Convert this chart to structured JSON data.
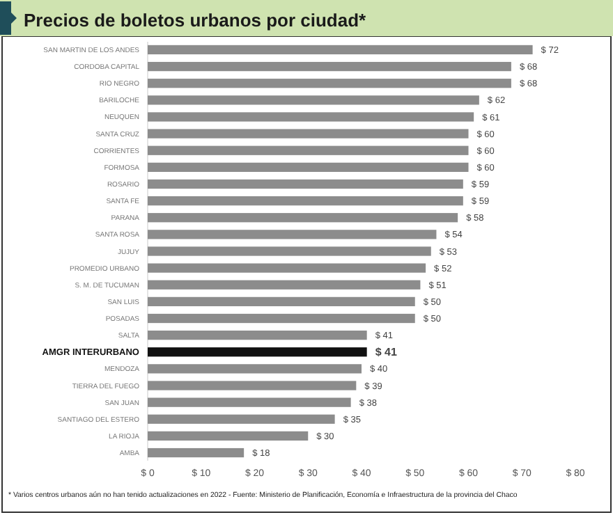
{
  "chart_data": {
    "type": "bar",
    "orientation": "horizontal",
    "title": "Precios de boletos urbanos por ciudad*",
    "categories": [
      "SAN MARTIN DE LOS ANDES",
      "CORDOBA CAPITAL",
      "RIO NEGRO",
      "BARILOCHE",
      "NEUQUEN",
      "SANTA CRUZ",
      "CORRIENTES",
      "FORMOSA",
      "ROSARIO",
      "SANTA FE",
      "PARANA",
      "SANTA ROSA",
      "JUJUY",
      "PROMEDIO URBANO",
      "S. M. DE TUCUMAN",
      "SAN LUIS",
      "POSADAS",
      "SALTA",
      "AMGR INTERURBANO",
      "MENDOZA",
      "TIERRA DEL FUEGO",
      "SAN JUAN",
      "SANTIAGO DEL ESTERO",
      "LA RIOJA",
      "AMBA"
    ],
    "values": [
      72,
      68,
      68,
      62,
      61,
      60,
      60,
      60,
      59,
      59,
      58,
      54,
      53,
      52,
      51,
      50,
      50,
      41,
      41,
      40,
      39,
      38,
      35,
      30,
      18
    ],
    "value_labels": [
      "$ 72",
      "$ 68",
      "$ 68",
      "$ 62",
      "$ 61",
      "$ 60",
      "$ 60",
      "$ 60",
      "$ 59",
      "$ 59",
      "$ 58",
      "$ 54",
      "$ 53",
      "$ 52",
      "$ 51",
      "$ 50",
      "$ 50",
      "$ 41",
      "$ 41",
      "$ 40",
      "$ 39",
      "$ 38",
      "$ 35",
      "$ 30",
      "$ 18"
    ],
    "colors": [
      "#8c8c8c",
      "#8c8c8c",
      "#8c8c8c",
      "#8c8c8c",
      "#8c8c8c",
      "#8c8c8c",
      "#8c8c8c",
      "#8c8c8c",
      "#8c8c8c",
      "#8c8c8c",
      "#8c8c8c",
      "#8c8c8c",
      "#8c8c8c",
      "#8c8c8c",
      "#8c8c8c",
      "#8c8c8c",
      "#8c8c8c",
      "#8c8c8c",
      "#111111",
      "#8c8c8c",
      "#8c8c8c",
      "#8c8c8c",
      "#8c8c8c",
      "#8c8c8c",
      "#8c8c8c"
    ],
    "xlim": [
      0,
      80
    ],
    "xticks": [
      {
        "value": 0,
        "label": "$ 0"
      },
      {
        "value": 10,
        "label": "$ 10"
      },
      {
        "value": 20,
        "label": "$ 20"
      },
      {
        "value": 30,
        "label": "$ 30"
      },
      {
        "value": 40,
        "label": "$ 40"
      },
      {
        "value": 50,
        "label": "$ 50"
      },
      {
        "value": 60,
        "label": "$ 60"
      },
      {
        "value": 70,
        "label": "$ 70"
      },
      {
        "value": 80,
        "label": "$ 80"
      }
    ],
    "grid": false,
    "annotations": [
      "* Varios centros urbanos aún no han tenido actualizaciones en 2022 - Fuente: Ministerio de Planificación, Economía e Infraestructura de la provincia del Chaco"
    ]
  }
}
